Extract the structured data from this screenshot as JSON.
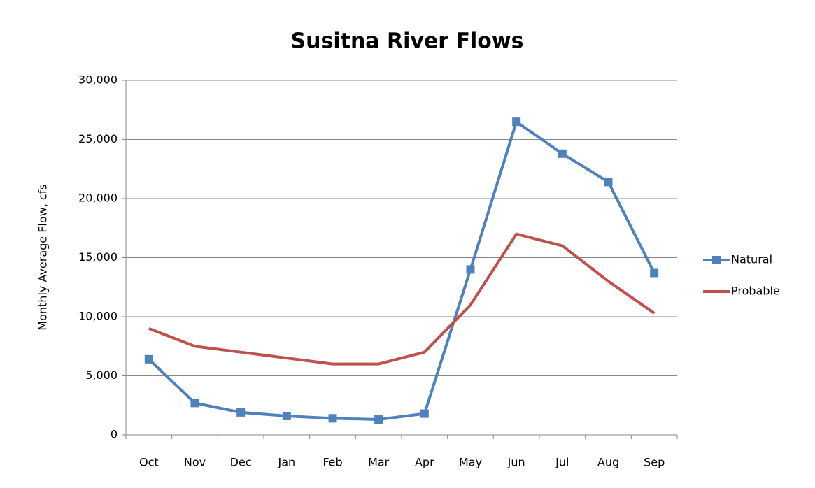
{
  "chart_data": {
    "type": "line",
    "title": "Susitna River Flows",
    "y_label": "Monthly Average Flow, cfs",
    "categories": [
      "Oct",
      "Nov",
      "Dec",
      "Jan",
      "Feb",
      "Mar",
      "Apr",
      "May",
      "Jun",
      "Jul",
      "Aug",
      "Sep"
    ],
    "series": [
      {
        "name": "Natural",
        "color": "#4f81bd",
        "marker": "square",
        "values": [
          6400,
          2700,
          1900,
          1600,
          1400,
          1300,
          1800,
          14000,
          26500,
          23800,
          21400,
          13700
        ]
      },
      {
        "name": "Probable",
        "color": "#c0504d",
        "marker": "none",
        "values": [
          9000,
          7500,
          7000,
          6500,
          6000,
          6000,
          7000,
          11000,
          17000,
          16000,
          13000,
          10300
        ]
      }
    ],
    "ylim": [
      0,
      30000
    ],
    "yticks": [
      0,
      {
        "value": 5000,
        "label": "5,000"
      },
      {
        "value": 10000,
        "label": "10,000"
      },
      {
        "value": 15000,
        "label": "15,000"
      },
      {
        "value": 20000,
        "label": "20,000"
      },
      {
        "value": 25000,
        "label": "25,000"
      },
      {
        "value": 30000,
        "label": "30,000"
      }
    ],
    "grid": true,
    "legend": "right"
  }
}
